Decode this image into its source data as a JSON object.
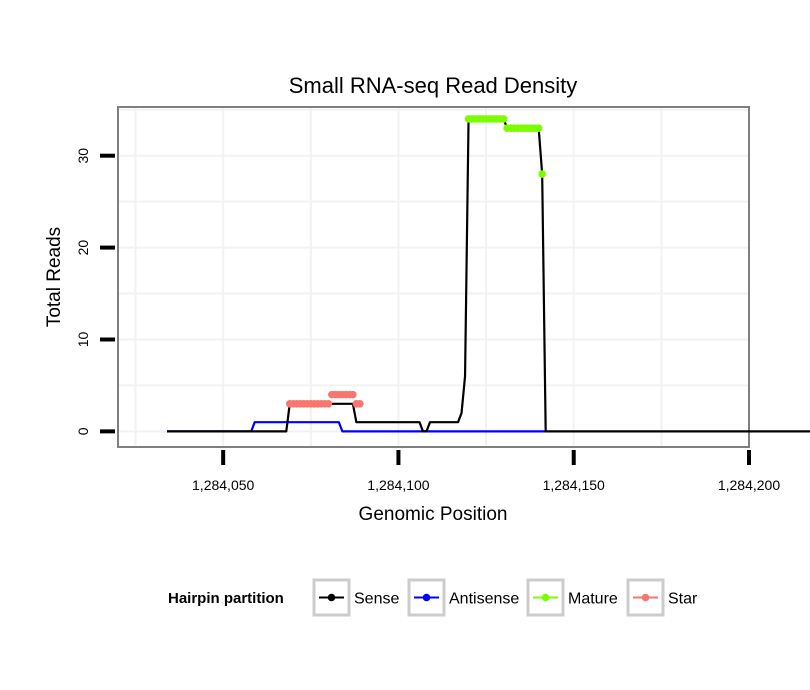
{
  "chart_data": {
    "type": "line",
    "title": "Small RNA-seq Read Density",
    "xlabel": "Genomic Position",
    "ylabel": "Total Reads",
    "xlim": [
      1284020,
      1284200
    ],
    "ylim": [
      -1.7,
      35.3
    ],
    "x_ticks": [
      1284050,
      1284100,
      1284150,
      1284200
    ],
    "x_tick_labels": [
      "1,284,050",
      "1,284,100",
      "1,284,150",
      "1,284,200"
    ],
    "y_ticks": [
      0,
      10,
      20,
      30
    ],
    "y_tick_labels": [
      "0",
      "10",
      "20",
      "30"
    ],
    "grid": true,
    "legend": {
      "title": "Hairpin partition",
      "position": "bottom",
      "entries": [
        {
          "label": "Sense",
          "color": "#000000"
        },
        {
          "label": "Antisense",
          "color": "#0000ff"
        },
        {
          "label": "Mature",
          "color": "#7cfc00"
        },
        {
          "label": "Star",
          "color": "#f8766d"
        }
      ]
    },
    "series": [
      {
        "name": "Sense",
        "color": "#000000",
        "kind": "line",
        "points": [
          [
            1284034,
            0
          ],
          [
            1284068,
            0
          ],
          [
            1284069,
            3
          ],
          [
            1284087,
            3
          ],
          [
            1284088,
            1
          ],
          [
            1284106,
            1
          ],
          [
            1284107,
            0
          ],
          [
            1284108,
            0
          ],
          [
            1284109,
            1
          ],
          [
            1284117,
            1
          ],
          [
            1284118,
            2
          ],
          [
            1284119,
            6
          ],
          [
            1284120,
            34
          ],
          [
            1284130,
            34
          ],
          [
            1284131,
            33
          ],
          [
            1284140,
            33
          ],
          [
            1284141,
            28
          ],
          [
            1284142,
            0
          ],
          [
            1284224,
            0
          ]
        ]
      },
      {
        "name": "Antisense",
        "color": "#0000ff",
        "kind": "line",
        "points": [
          [
            1284034,
            0
          ],
          [
            1284058,
            0
          ],
          [
            1284059,
            1
          ],
          [
            1284083,
            1
          ],
          [
            1284084,
            0
          ],
          [
            1284142,
            0
          ]
        ]
      },
      {
        "name": "Mature",
        "color": "#7cfc00",
        "kind": "points",
        "points": [
          [
            1284120,
            34
          ],
          [
            1284121,
            34
          ],
          [
            1284122,
            34
          ],
          [
            1284123,
            34
          ],
          [
            1284124,
            34
          ],
          [
            1284125,
            34
          ],
          [
            1284126,
            34
          ],
          [
            1284127,
            34
          ],
          [
            1284128,
            34
          ],
          [
            1284129,
            34
          ],
          [
            1284130,
            34
          ],
          [
            1284131,
            33
          ],
          [
            1284132,
            33
          ],
          [
            1284133,
            33
          ],
          [
            1284134,
            33
          ],
          [
            1284135,
            33
          ],
          [
            1284136,
            33
          ],
          [
            1284137,
            33
          ],
          [
            1284138,
            33
          ],
          [
            1284139,
            33
          ],
          [
            1284140,
            33
          ],
          [
            1284141,
            28
          ]
        ]
      },
      {
        "name": "Star",
        "color": "#f8766d",
        "kind": "points",
        "points": [
          [
            1284069,
            3
          ],
          [
            1284070,
            3
          ],
          [
            1284071,
            3
          ],
          [
            1284072,
            3
          ],
          [
            1284073,
            3
          ],
          [
            1284074,
            3
          ],
          [
            1284075,
            3
          ],
          [
            1284076,
            3
          ],
          [
            1284077,
            3
          ],
          [
            1284078,
            3
          ],
          [
            1284079,
            3
          ],
          [
            1284080,
            3
          ],
          [
            1284081,
            4
          ],
          [
            1284082,
            4
          ],
          [
            1284083,
            4
          ],
          [
            1284084,
            4
          ],
          [
            1284085,
            4
          ],
          [
            1284086,
            4
          ],
          [
            1284087,
            4
          ],
          [
            1284088,
            3
          ],
          [
            1284089,
            3
          ]
        ]
      }
    ]
  }
}
